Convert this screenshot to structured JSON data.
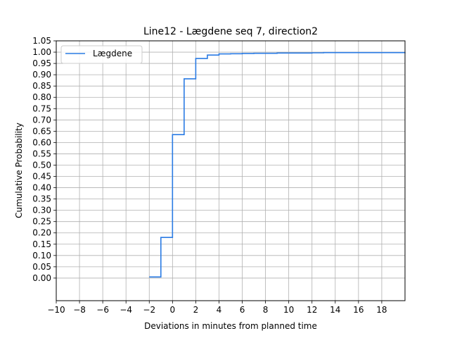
{
  "chart_data": {
    "type": "line",
    "step": "post",
    "title": "Line12 - Lægdene seq 7, direction2",
    "xlabel": "Deviations in minutes from planned time",
    "ylabel": "Cumulative Probability",
    "xlim": [
      -10,
      20
    ],
    "ylim": [
      -0.1,
      1.05
    ],
    "xticks": [
      -10,
      -8,
      -6,
      -4,
      -2,
      0,
      2,
      4,
      6,
      8,
      10,
      12,
      14,
      16,
      18
    ],
    "xtick_labels": [
      "−10",
      "−8",
      "−6",
      "−4",
      "−2",
      "0",
      "2",
      "4",
      "6",
      "8",
      "10",
      "12",
      "14",
      "16",
      "18"
    ],
    "yticks": [
      0.0,
      0.05,
      0.1,
      0.15,
      0.2,
      0.25,
      0.3,
      0.35,
      0.4,
      0.45,
      0.5,
      0.55,
      0.6,
      0.65,
      0.7,
      0.75,
      0.8,
      0.85,
      0.9,
      0.95,
      1.0,
      1.05
    ],
    "ytick_labels": [
      "0.00",
      "0.05",
      "0.10",
      "0.15",
      "0.20",
      "0.25",
      "0.30",
      "0.35",
      "0.40",
      "0.45",
      "0.50",
      "0.55",
      "0.60",
      "0.65",
      "0.70",
      "0.75",
      "0.80",
      "0.85",
      "0.90",
      "0.95",
      "1.00",
      "1.05"
    ],
    "grid": true,
    "legend_position": "upper-left",
    "series": [
      {
        "name": "Lægdene",
        "color": "#2a7be4",
        "x": [
          -2,
          -1,
          0,
          1,
          2,
          3,
          4,
          5,
          6,
          7,
          8,
          9,
          10,
          11,
          12,
          13,
          20
        ],
        "y": [
          0.005,
          0.18,
          0.635,
          0.882,
          0.972,
          0.987,
          0.992,
          0.993,
          0.994,
          0.995,
          0.995,
          0.996,
          0.996,
          0.996,
          0.997,
          0.998,
          0.999
        ]
      }
    ]
  }
}
